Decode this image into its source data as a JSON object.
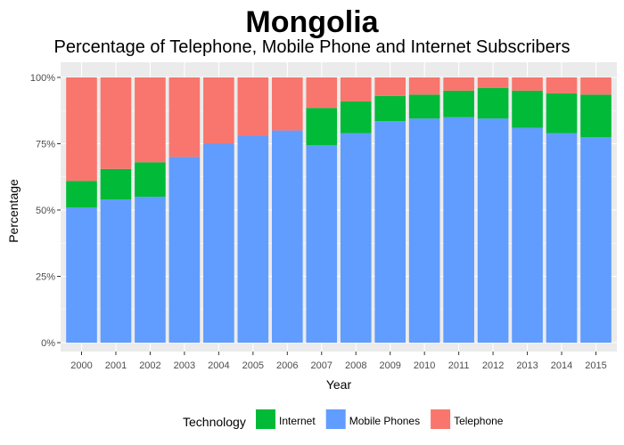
{
  "chart_data": {
    "type": "bar",
    "stacked": true,
    "title": "Mongolia",
    "subtitle": "Percentage of Telephone, Mobile Phone and Internet Subscribers",
    "xlabel": "Year",
    "ylabel": "Percentage",
    "ylim": [
      0,
      1
    ],
    "yticks": [
      "0%",
      "25%",
      "50%",
      "75%",
      "100%"
    ],
    "grid": true,
    "legend_position": "bottom",
    "legend_title": "Technology",
    "categories": [
      "2000",
      "2001",
      "2002",
      "2003",
      "2004",
      "2005",
      "2006",
      "2007",
      "2008",
      "2009",
      "2010",
      "2011",
      "2012",
      "2013",
      "2014",
      "2015"
    ],
    "series": [
      {
        "name": "Mobile Phones",
        "color": "#619CFF",
        "values": [
          0.51,
          0.54,
          0.55,
          0.7,
          0.75,
          0.78,
          0.8,
          0.745,
          0.79,
          0.835,
          0.845,
          0.85,
          0.845,
          0.81,
          0.79,
          0.775
        ]
      },
      {
        "name": "Internet",
        "color": "#00BA38",
        "values": [
          0.1,
          0.115,
          0.13,
          0.0,
          0.0,
          0.0,
          0.0,
          0.14,
          0.12,
          0.095,
          0.09,
          0.1,
          0.115,
          0.14,
          0.15,
          0.16
        ]
      },
      {
        "name": "Telephone",
        "color": "#F8766D",
        "values": [
          0.39,
          0.345,
          0.32,
          0.3,
          0.25,
          0.22,
          0.2,
          0.115,
          0.09,
          0.07,
          0.065,
          0.05,
          0.04,
          0.05,
          0.06,
          0.065
        ]
      }
    ],
    "legend_order": [
      "Internet",
      "Mobile Phones",
      "Telephone"
    ]
  }
}
